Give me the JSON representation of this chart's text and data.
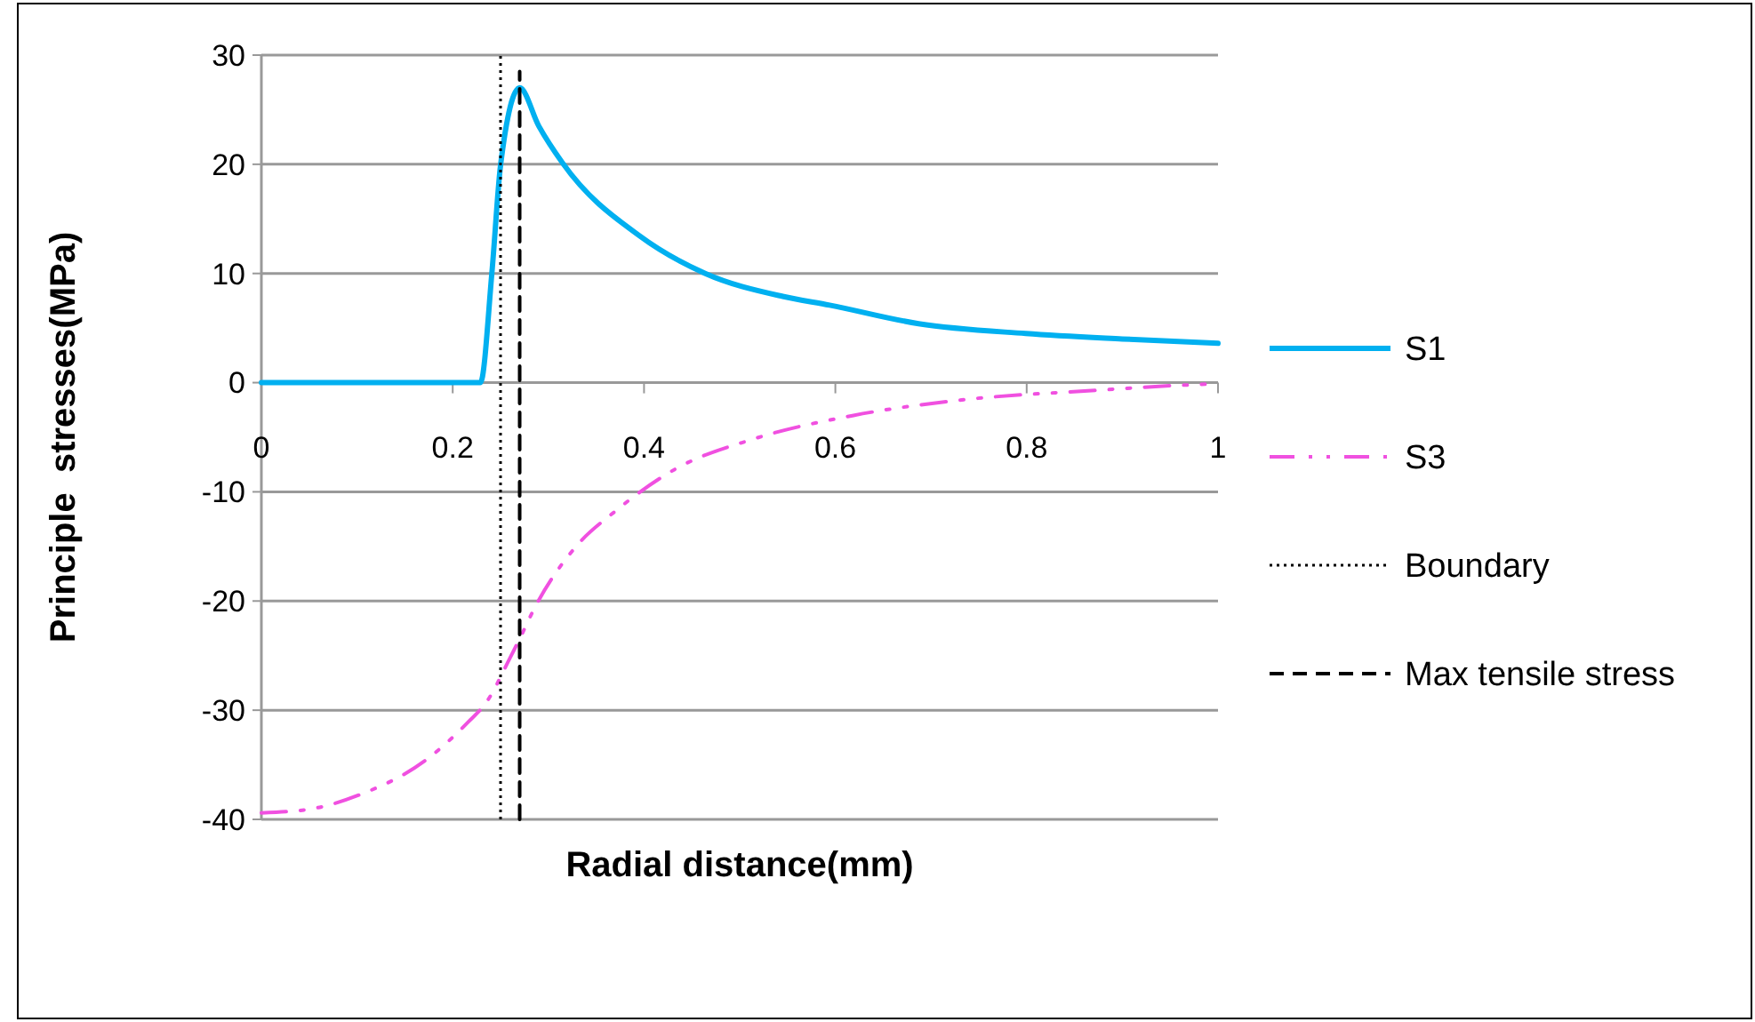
{
  "chart_data": {
    "type": "line",
    "xlabel": "Radial distance(mm)",
    "ylabel": "Principle  stresses(MPa)",
    "xlim": [
      0,
      1
    ],
    "xticks": [
      0,
      0.2,
      0.4,
      0.6,
      0.8,
      1
    ],
    "ylim": [
      -40,
      30
    ],
    "yticks": [
      -40,
      -30,
      -20,
      -10,
      0,
      10,
      20,
      30
    ],
    "grid": "y",
    "legend": "right",
    "series": [
      {
        "name": "S1",
        "color": "#00b0f0",
        "line_style": "solid",
        "x": [
          0,
          0.1,
          0.229,
          0.241,
          0.25,
          0.27,
          0.29,
          0.315,
          0.396,
          0.464,
          0.545,
          0.594,
          0.687,
          0.799,
          0.9,
          1
        ],
        "values": [
          0,
          0,
          0,
          10.1,
          19.9,
          27,
          23.5,
          20.1,
          13.4,
          10,
          7.9,
          7.1,
          5.4,
          4.5,
          4,
          3.6
        ]
      },
      {
        "name": "S3",
        "color": "#f050e0",
        "line_style": "dashed",
        "x": [
          0,
          0.048,
          0.104,
          0.173,
          0.216,
          0.235,
          0.26,
          0.272,
          0.284,
          0.327,
          0.371,
          0.433,
          0.513,
          0.619,
          0.73,
          0.873,
          0.97,
          1
        ],
        "values": [
          -39.4,
          -39.1,
          -37.7,
          -34.5,
          -31.1,
          -29.3,
          -25.2,
          -23.1,
          -20.9,
          -15.2,
          -11.7,
          -7.9,
          -5.2,
          -3,
          -1.6,
          -0.7,
          -0.2,
          -0.1
        ]
      },
      {
        "name": "Boundary",
        "color": "#000000",
        "line_style": "dotted",
        "x": [
          0.25,
          0.25
        ],
        "values": [
          -40,
          30
        ]
      },
      {
        "name": "Max tensile stress",
        "color": "#000000",
        "line_style": "dashed",
        "x": [
          0.27,
          0.27
        ],
        "values": [
          -40,
          28.5
        ]
      }
    ]
  }
}
